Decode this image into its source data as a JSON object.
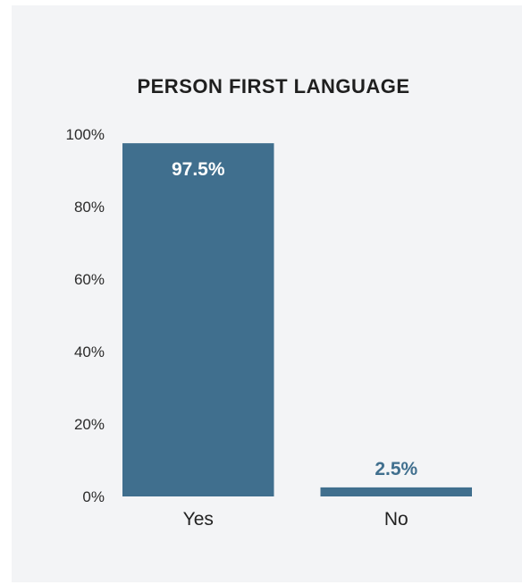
{
  "chart_data": {
    "type": "bar",
    "title": "PERSON FIRST LANGUAGE",
    "xlabel": "",
    "ylabel": "",
    "categories": [
      "Yes",
      "No"
    ],
    "values": [
      97.5,
      2.5
    ],
    "data_labels": [
      "97.5%",
      "2.5%"
    ],
    "ylim": [
      0,
      100
    ],
    "y_ticks": [
      {
        "value": 0,
        "label": "0%"
      },
      {
        "value": 20,
        "label": "20%"
      },
      {
        "value": 40,
        "label": "40%"
      },
      {
        "value": 60,
        "label": "60%"
      },
      {
        "value": 80,
        "label": "80%"
      },
      {
        "value": 100,
        "label": "100%"
      }
    ],
    "grid": false,
    "legend": "none",
    "colors": {
      "bar": "#406f8e",
      "label_inside": "#ffffff",
      "label_outside": "#406f8e",
      "background": "#f3f4f6"
    }
  }
}
